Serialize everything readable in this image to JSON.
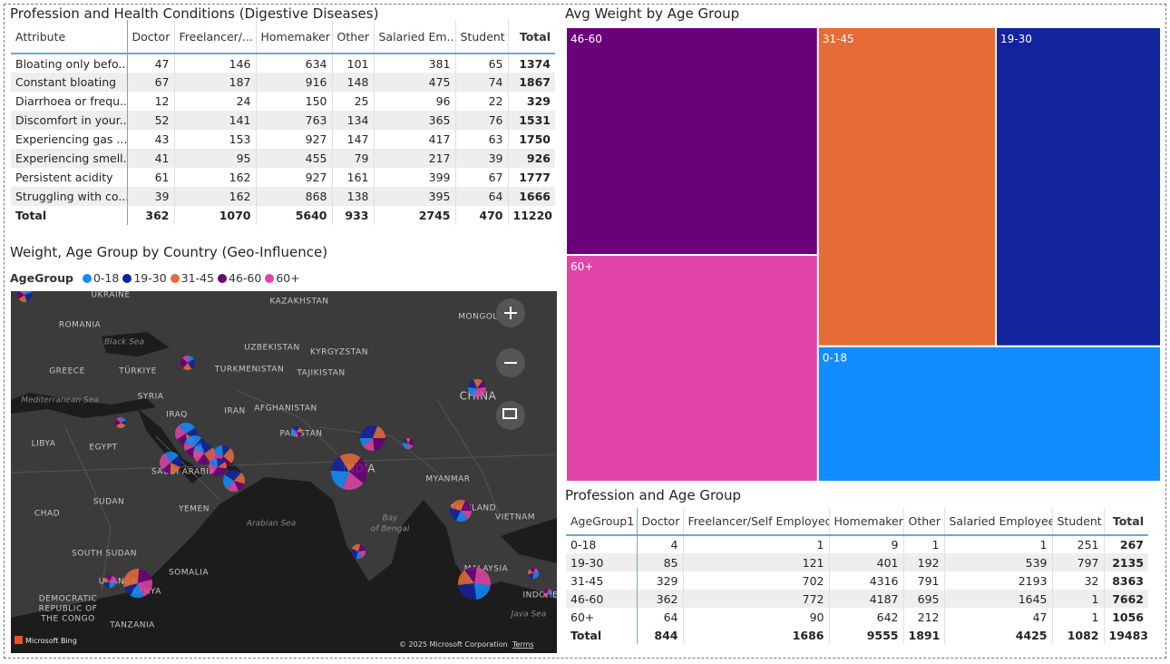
{
  "table1": {
    "title": "Profession and Health Conditions (Digestive Diseases)",
    "columns": [
      "Attribute",
      "Doctor",
      "Freelancer/...",
      "Homemaker",
      "Other",
      "Salaried Em...",
      "Student",
      "Total"
    ],
    "rows": [
      [
        "Bloating only befo...",
        47,
        146,
        634,
        101,
        381,
        65,
        1374
      ],
      [
        "Constant bloating",
        67,
        187,
        916,
        148,
        475,
        74,
        1867
      ],
      [
        "Diarrhoea or frequ...",
        12,
        24,
        150,
        25,
        96,
        22,
        329
      ],
      [
        "Discomfort in your...",
        52,
        141,
        763,
        134,
        365,
        76,
        1531
      ],
      [
        "Experiencing gas ...",
        43,
        153,
        927,
        147,
        417,
        63,
        1750
      ],
      [
        "Experiencing smell...",
        41,
        95,
        455,
        79,
        217,
        39,
        926
      ],
      [
        "Persistent acidity",
        61,
        162,
        927,
        161,
        399,
        67,
        1777
      ],
      [
        "Struggling with co...",
        39,
        162,
        868,
        138,
        395,
        64,
        1666
      ]
    ],
    "total": [
      "Total",
      362,
      1070,
      5640,
      933,
      2745,
      470,
      11220
    ]
  },
  "map": {
    "title": "Weight, Age Group by Country (Geo-Influence)",
    "legend_title": "AgeGroup",
    "legend": [
      {
        "name": "0-18",
        "color": "#118DFF"
      },
      {
        "name": "19-30",
        "color": "#12239E"
      },
      {
        "name": "31-45",
        "color": "#E66C37"
      },
      {
        "name": "46-60",
        "color": "#6B007B"
      },
      {
        "name": "60+",
        "color": "#E044A7"
      }
    ],
    "labels": [
      "UKRAINE",
      "ROMANIA",
      "KAZAKHSTAN",
      "MONGOLIA",
      "Black Sea",
      "GREECE",
      "TÜRKIYE",
      "UZBEKISTAN",
      "KYRGYZSTAN",
      "TURKMENISTAN",
      "TAJIKISTAN",
      "SYRIA",
      "CHINA",
      "Mediterranean Sea",
      "IRAQ",
      "IRAN",
      "AFGHANISTAN",
      "LIBYA",
      "EGYPT",
      "PAKISTAN",
      "SAUDI ARABIA",
      "INDIA",
      "MYANMAR",
      "SUDAN",
      "YEMEN",
      "Arabian Sea",
      "Bay",
      "of Bengal",
      "THAILAND",
      "VIETNAM",
      "CHAD",
      "SOUTH SUDAN",
      "SOMALIA",
      "UGANDA",
      "KENYA",
      "MALAYSIA",
      "INDONES",
      "DEMOCRATIC",
      "REPUBLIC OF",
      "THE CONGO",
      "TANZANIA",
      "Java Sea"
    ],
    "attribution": "Microsoft Bing",
    "copyright": "© 2025 Microsoft Corporation",
    "terms": "Terms"
  },
  "treemap": {
    "title": "Avg Weight by Age Group",
    "categories": [
      "46-60",
      "60+",
      "31-45",
      "19-30",
      "0-18"
    ],
    "values": [
      70.5,
      70.2,
      69.8,
      64.7,
      57.1
    ],
    "colors": [
      "#6B007B",
      "#E044A7",
      "#E66C37",
      "#12239E",
      "#118DFF"
    ]
  },
  "table2": {
    "title": "Profession and Age Group",
    "columns": [
      "AgeGroup1",
      "Doctor",
      "Freelancer/Self Employed",
      "Homemaker",
      "Other",
      "Salaried Employee",
      "Student",
      "Total"
    ],
    "rows": [
      [
        "0-18",
        4,
        1,
        9,
        1,
        1,
        251,
        267
      ],
      [
        "19-30",
        85,
        121,
        401,
        192,
        539,
        797,
        2135
      ],
      [
        "31-45",
        329,
        702,
        4316,
        791,
        2193,
        32,
        8363
      ],
      [
        "46-60",
        362,
        772,
        4187,
        695,
        1645,
        1,
        7662
      ],
      [
        "60+",
        64,
        90,
        642,
        212,
        47,
        1,
        1056
      ]
    ],
    "total": [
      "Total",
      844,
      1686,
      9555,
      1891,
      4425,
      1082,
      19483
    ]
  }
}
